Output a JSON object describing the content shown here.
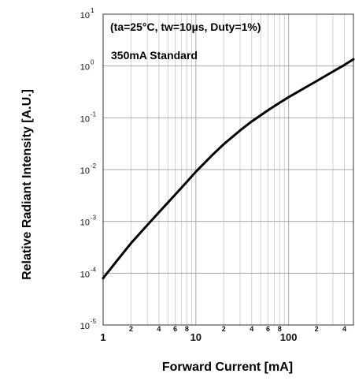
{
  "chart_data": {
    "type": "line",
    "title": "",
    "xlabel": "Forward Current [mA]",
    "ylabel": "Relative Radiant Intensity [A.U.]",
    "xscale": "log",
    "yscale": "log",
    "xlim": [
      1,
      500
    ],
    "ylim": [
      1e-05,
      10
    ],
    "grid": true,
    "legend": "none",
    "annotations": [
      "(ta=25°C, tw=10µs, Duty=1%)",
      "350mA Standard"
    ],
    "x_major_ticks": [
      {
        "value": 1,
        "label": "1"
      },
      {
        "value": 10,
        "label": "10"
      },
      {
        "value": 100,
        "label": "100"
      }
    ],
    "x_minor_ticks": [
      {
        "value": 2,
        "label": "2"
      },
      {
        "value": 4,
        "label": "4"
      },
      {
        "value": 6,
        "label": "6"
      },
      {
        "value": 8,
        "label": "8"
      },
      {
        "value": 20,
        "label": "2"
      },
      {
        "value": 40,
        "label": "4"
      },
      {
        "value": 60,
        "label": "6"
      },
      {
        "value": 80,
        "label": "8"
      },
      {
        "value": 200,
        "label": "2"
      },
      {
        "value": 400,
        "label": "4"
      }
    ],
    "y_ticks": [
      {
        "value": 1e-05,
        "base": "10",
        "exp": "-5"
      },
      {
        "value": 0.0001,
        "base": "10",
        "exp": "-4"
      },
      {
        "value": 0.001,
        "base": "10",
        "exp": "-3"
      },
      {
        "value": 0.01,
        "base": "10",
        "exp": "-2"
      },
      {
        "value": 0.1,
        "base": "10",
        "exp": "-1"
      },
      {
        "value": 1,
        "base": "10",
        "exp": "0"
      },
      {
        "value": 10,
        "base": "10",
        "exp": "1"
      }
    ],
    "series": [
      {
        "color": "#000000",
        "x": [
          1,
          1.5,
          2,
          3,
          4,
          6,
          8,
          10,
          15,
          20,
          30,
          40,
          60,
          80,
          100,
          150,
          200,
          300,
          400,
          500
        ],
        "y": [
          8e-05,
          0.0002,
          0.00038,
          0.00085,
          0.0015,
          0.0033,
          0.0058,
          0.0091,
          0.019,
          0.031,
          0.057,
          0.085,
          0.14,
          0.195,
          0.25,
          0.38,
          0.51,
          0.78,
          1.05,
          1.35
        ]
      }
    ]
  }
}
